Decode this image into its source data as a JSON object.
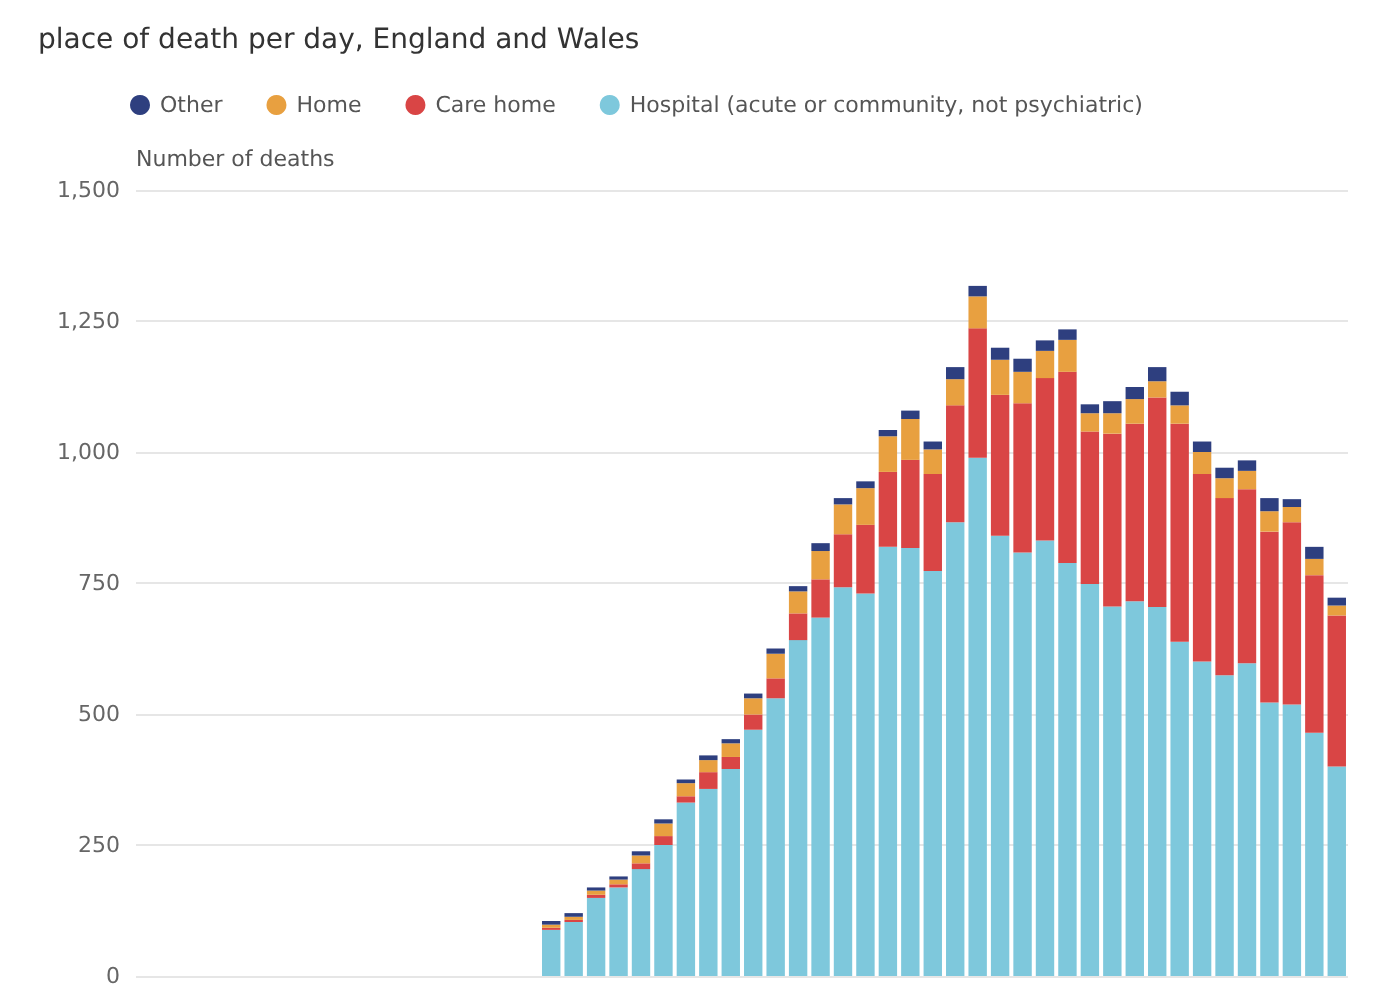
{
  "chart_data": {
    "type": "bar",
    "title": "place of death per day, England and Wales",
    "ylabel": "Number of deaths",
    "stacked": true,
    "grid": "y",
    "legend": "top left",
    "categories": [
      null,
      null,
      null,
      null,
      null,
      null,
      null,
      null,
      null,
      null,
      null,
      null,
      null,
      null,
      null,
      null,
      null,
      null,
      null,
      null,
      null,
      null,
      null,
      null,
      null,
      null,
      null,
      null,
      null,
      null,
      null,
      null,
      null,
      null,
      null,
      null,
      null,
      null,
      null,
      null,
      null,
      null,
      null,
      null,
      null,
      null,
      null,
      null,
      null,
      null,
      null,
      null,
      null,
      null
    ],
    "ylim": [
      0,
      1500
    ],
    "yticks": [
      0,
      {
        "value": 250,
        "label": "250"
      },
      {
        "value": 500,
        "label": "500"
      },
      {
        "value": 750,
        "label": "750"
      },
      {
        "value": 1000,
        "label": "1,000"
      },
      {
        "value": 1250,
        "label": "1,250"
      },
      {
        "value": 1500,
        "label": "1,500"
      }
    ],
    "series": [
      {
        "name": "Hospital (acute or community, not psychiatric)",
        "color": "#7ec8dc",
        "values": [
          null,
          null,
          null,
          null,
          null,
          null,
          null,
          null,
          null,
          null,
          null,
          null,
          null,
          null,
          null,
          null,
          null,
          null,
          88,
          103,
          149,
          169,
          204,
          250,
          331,
          357,
          395,
          470,
          530,
          641,
          684,
          742,
          730,
          819,
          817,
          773,
          866,
          989,
          840,
          808,
          831,
          788,
          748,
          705,
          715,
          704,
          638,
          600,
          574,
          597,
          522,
          518,
          464,
          400
        ]
      },
      {
        "name": "Care home",
        "color": "#d94545",
        "values": [
          null,
          null,
          null,
          null,
          null,
          null,
          null,
          null,
          null,
          null,
          null,
          null,
          null,
          null,
          null,
          null,
          null,
          null,
          4,
          4,
          6,
          6,
          11,
          17,
          12,
          32,
          23,
          29,
          38,
          51,
          73,
          101,
          131,
          143,
          168,
          185,
          223,
          247,
          269,
          285,
          310,
          365,
          291,
          330,
          339,
          400,
          416,
          358,
          338,
          332,
          326,
          348,
          301,
          288
        ]
      },
      {
        "name": "Home",
        "color": "#e8a040",
        "values": [
          null,
          null,
          null,
          null,
          null,
          null,
          null,
          null,
          null,
          null,
          null,
          null,
          null,
          null,
          null,
          null,
          null,
          null,
          6,
          6,
          8,
          9,
          15,
          24,
          25,
          23,
          26,
          31,
          47,
          42,
          54,
          57,
          70,
          68,
          78,
          47,
          50,
          61,
          67,
          60,
          52,
          61,
          35,
          39,
          47,
          31,
          35,
          42,
          38,
          35,
          39,
          29,
          31,
          19
        ]
      },
      {
        "name": "Other",
        "color": "#2e3f7f",
        "values": [
          null,
          null,
          null,
          null,
          null,
          null,
          null,
          null,
          null,
          null,
          null,
          null,
          null,
          null,
          null,
          null,
          null,
          null,
          7,
          7,
          6,
          6,
          8,
          8,
          7,
          9,
          8,
          9,
          10,
          10,
          15,
          12,
          13,
          12,
          16,
          15,
          23,
          20,
          23,
          25,
          20,
          20,
          17,
          23,
          23,
          27,
          26,
          20,
          20,
          20,
          25,
          15,
          23,
          15
        ]
      }
    ]
  }
}
